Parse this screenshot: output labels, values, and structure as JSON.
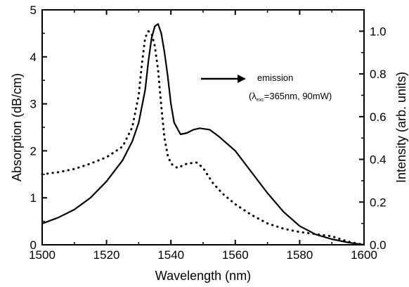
{
  "chart_data": {
    "type": "line",
    "title": "",
    "xlabel": "Wavelength (nm)",
    "ylabel_left": "Absorption (dB/cm)",
    "ylabel_right": "Intensity (arb. units)",
    "xlim": [
      1500,
      1600
    ],
    "ylim_left": [
      0,
      5
    ],
    "ylim_right": [
      0,
      1.1
    ],
    "x_ticks": [
      1500,
      1520,
      1540,
      1560,
      1580,
      1600
    ],
    "y_left_ticks": [
      0,
      1,
      2,
      3,
      4,
      5
    ],
    "y_right_ticks": [
      "0.0",
      "0.2",
      "0.4",
      "0.6",
      "0.8",
      "1.0"
    ],
    "grid": false,
    "series": [
      {
        "name": "",
        "axis": "left",
        "style": "solid",
        "color": "#000000",
        "points": [
          [
            1500,
            0.45
          ],
          [
            1505,
            0.58
          ],
          [
            1510,
            0.75
          ],
          [
            1515,
            1.0
          ],
          [
            1520,
            1.35
          ],
          [
            1525,
            1.8
          ],
          [
            1528,
            2.2
          ],
          [
            1530,
            2.6
          ],
          [
            1532,
            3.3
          ],
          [
            1533,
            3.9
          ],
          [
            1534,
            4.4
          ],
          [
            1535,
            4.65
          ],
          [
            1536,
            4.7
          ],
          [
            1537,
            4.5
          ],
          [
            1538,
            4.1
          ],
          [
            1539,
            3.6
          ],
          [
            1540,
            3.0
          ],
          [
            1541,
            2.6
          ],
          [
            1543,
            2.35
          ],
          [
            1545,
            2.38
          ],
          [
            1547,
            2.45
          ],
          [
            1549,
            2.48
          ],
          [
            1552,
            2.45
          ],
          [
            1555,
            2.3
          ],
          [
            1560,
            2.0
          ],
          [
            1565,
            1.55
          ],
          [
            1570,
            1.1
          ],
          [
            1575,
            0.7
          ],
          [
            1580,
            0.4
          ],
          [
            1585,
            0.22
          ],
          [
            1590,
            0.12
          ],
          [
            1595,
            0.05
          ],
          [
            1600,
            0.0
          ]
        ]
      },
      {
        "name": "emission",
        "axis": "right",
        "style": "dotted",
        "color": "#000000",
        "points": [
          [
            1500,
            0.33
          ],
          [
            1505,
            0.34
          ],
          [
            1510,
            0.355
          ],
          [
            1515,
            0.38
          ],
          [
            1520,
            0.41
          ],
          [
            1525,
            0.46
          ],
          [
            1528,
            0.55
          ],
          [
            1530,
            0.7
          ],
          [
            1531,
            0.85
          ],
          [
            1532,
            0.97
          ],
          [
            1533,
            1.0
          ],
          [
            1534,
            0.99
          ],
          [
            1535,
            0.93
          ],
          [
            1536,
            0.82
          ],
          [
            1537,
            0.65
          ],
          [
            1538,
            0.5
          ],
          [
            1539,
            0.42
          ],
          [
            1540,
            0.38
          ],
          [
            1542,
            0.36
          ],
          [
            1545,
            0.38
          ],
          [
            1548,
            0.385
          ],
          [
            1550,
            0.36
          ],
          [
            1553,
            0.29
          ],
          [
            1556,
            0.24
          ],
          [
            1560,
            0.19
          ],
          [
            1565,
            0.14
          ],
          [
            1570,
            0.1
          ],
          [
            1575,
            0.075
          ],
          [
            1580,
            0.06
          ],
          [
            1585,
            0.05
          ],
          [
            1590,
            0.04
          ],
          [
            1595,
            0.015
          ],
          [
            1600,
            0.0
          ]
        ]
      }
    ],
    "annotation": {
      "text_main": "emission",
      "text_lambda": "(λ",
      "text_sub": "exc",
      "text_rest": "=365nm, 90mW)"
    }
  }
}
